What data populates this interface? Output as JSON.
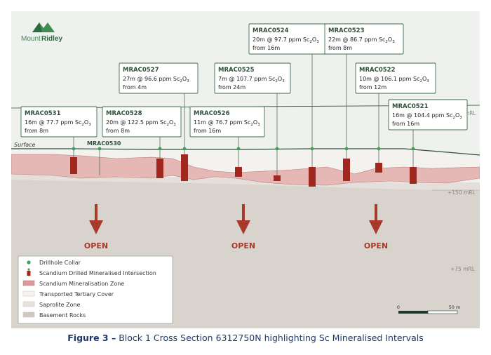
{
  "logo": {
    "word_mount": "Mount",
    "word_ridley": "Ridley"
  },
  "surface_label": "Surface",
  "elevations": [
    "mRL",
    "+150 mRL",
    "+75 mRL"
  ],
  "open_label": "OPEN",
  "holes": [
    {
      "id": "MRAC0531",
      "line1": "16m @ 77.7 ppm Sc",
      "line2": "from 8m"
    },
    {
      "id": "MRAC0528",
      "line1": "20m @ 122.5 ppm Sc",
      "line2": "from 8m"
    },
    {
      "id": "MRAC0527",
      "line1": "27m @ 96.6 ppm Sc",
      "line2": "from 4m"
    },
    {
      "id": "MRAC0526",
      "line1": "11m @ 76.7 ppm Sc",
      "line2": "from 16m"
    },
    {
      "id": "MRAC0525",
      "line1": "7m @ 107.7 ppm Sc",
      "line2": "from 24m"
    },
    {
      "id": "MRAC0524",
      "line1": "20m @ 97.7 ppm Sc",
      "line2": "from 16m"
    },
    {
      "id": "MRAC0523",
      "line1": "22m @ 86.7 ppm Sc",
      "line2": "from 8m"
    },
    {
      "id": "MRAC0522",
      "line1": "10m @ 106.1 ppm Sc",
      "line2": "from 12m"
    },
    {
      "id": "MRAC0521",
      "line1": "16m @ 104.4 ppm Sc",
      "line2": "from 16m"
    }
  ],
  "hole_no_result": "MRAC0530",
  "oxide": {
    "mid": "2",
    "tail": "O",
    "end": "3"
  },
  "legend": [
    {
      "label": "Drillhole Collar",
      "color": "#3aa35a"
    },
    {
      "label": "Scandium Drilled Mineralised Intersection",
      "color": "#a0281f"
    },
    {
      "label": "Scandium Mineralisation Zone",
      "color": "#d79b99"
    },
    {
      "label": "Transported Tertiary Cover",
      "color": "#f7f3ee"
    },
    {
      "label": "Saprolite Zone",
      "color": "#e6e1db"
    },
    {
      "label": "Basement Rocks",
      "color": "#cfc8c1"
    }
  ],
  "scale": {
    "start": "0",
    "end": "50 m"
  },
  "caption": {
    "bold": "Figure 3 –",
    "text": " Block 1 Cross Section 6312750N highlighting Sc Mineralised Intervals"
  },
  "colors": {
    "intersection": "#a0281f",
    "zone": "#e8bcba",
    "collar": "#3aa35a",
    "label_border": "#3d6b4a"
  }
}
